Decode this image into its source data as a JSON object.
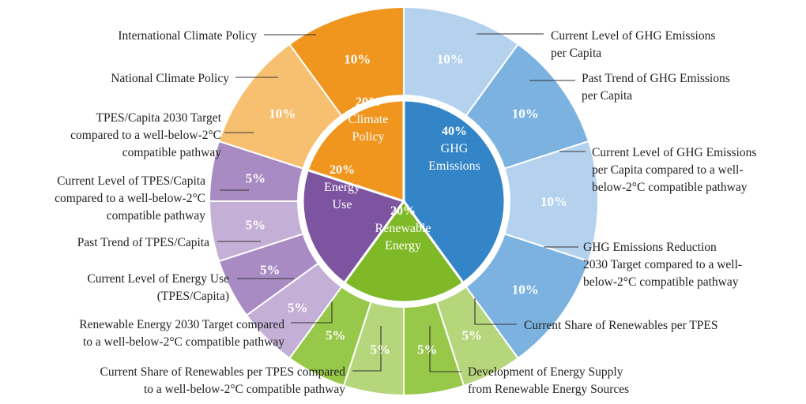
{
  "chart_data": {
    "type": "pie",
    "style": "two-level sunburst donut",
    "colors": {
      "ghg": "#3485c7",
      "ghg_light": "#b4d2ee",
      "ghg_mid": "#7cb2e0",
      "climate": "#f0951e",
      "climate_light": "#f7c070",
      "energy": "#7c549f",
      "energy_light": "#c4b0d6",
      "energy_mid": "#a98bc4",
      "renew": "#7fb927",
      "renew_light": "#b6d67c",
      "renew_mid": "#98c84a",
      "separator": "#ffffff"
    },
    "inner": [
      {
        "id": "ghg",
        "label_lines": [
          "40%",
          "GHG",
          "Emissions"
        ],
        "value": 40
      },
      {
        "id": "renew",
        "label_lines": [
          "20%",
          "Renewable",
          "Energy"
        ],
        "value": 20
      },
      {
        "id": "energy",
        "label_lines": [
          "20%",
          "Energy",
          "Use"
        ],
        "value": 20
      },
      {
        "id": "climate",
        "label_lines": [
          "20%",
          "Climate",
          "Policy"
        ],
        "value": 20
      }
    ],
    "outer": [
      {
        "id": "ghg1",
        "group": "ghg",
        "value": 10,
        "pct": "10%",
        "label_lines": [
          "Current Level of GHG Emissions",
          "per Capita"
        ]
      },
      {
        "id": "ghg2",
        "group": "ghg",
        "value": 10,
        "pct": "10%",
        "label_lines": [
          "Past Trend of GHG Emissions",
          "per Capita"
        ]
      },
      {
        "id": "ghg3",
        "group": "ghg",
        "value": 10,
        "pct": "10%",
        "label_lines": [
          "Current Level of GHG Emissions",
          "per Capita compared to a well-",
          "below-2°C compatible pathway"
        ]
      },
      {
        "id": "ghg4",
        "group": "ghg",
        "value": 10,
        "pct": "10%",
        "label_lines": [
          "GHG Emissions Reduction",
          "2030 Target compared to a well-",
          "below-2°C compatible pathway"
        ]
      },
      {
        "id": "ren1",
        "group": "renew",
        "value": 5,
        "pct": "5%",
        "label_lines": [
          "Current Share of Renewables per TPES"
        ]
      },
      {
        "id": "ren2",
        "group": "renew",
        "value": 5,
        "pct": "5%",
        "label_lines": [
          "Development of Energy Supply",
          "from Renewable Energy Sources"
        ]
      },
      {
        "id": "ren3",
        "group": "renew",
        "value": 5,
        "pct": "5%",
        "label_lines": [
          "Current Share of Renewables per TPES compared",
          "to a well-below-2°C compatible pathway"
        ]
      },
      {
        "id": "ren4",
        "group": "renew",
        "value": 5,
        "pct": "5%",
        "label_lines": [
          "Renewable Energy 2030 Target compared",
          "to a well-below-2°C compatible pathway"
        ]
      },
      {
        "id": "eu1",
        "group": "energy",
        "value": 5,
        "pct": "5%",
        "label_lines": [
          "Current Level of Energy Use",
          "(TPES/Capita)"
        ]
      },
      {
        "id": "eu2",
        "group": "energy",
        "value": 5,
        "pct": "5%",
        "label_lines": [
          "Past Trend of TPES/Capita"
        ]
      },
      {
        "id": "eu3",
        "group": "energy",
        "value": 5,
        "pct": "5%",
        "label_lines": [
          "Current Level of TPES/Capita",
          "compared to a well-below-2°C",
          "compatible pathway"
        ]
      },
      {
        "id": "eu4",
        "group": "energy",
        "value": 5,
        "pct": "5%",
        "label_lines": [
          "TPES/Capita 2030 Target",
          "compared to a well-below-2°C",
          "compatible pathway"
        ]
      },
      {
        "id": "cp1",
        "group": "climate",
        "value": 10,
        "pct": "10%",
        "label_lines": [
          "National Climate Policy"
        ]
      },
      {
        "id": "cp2",
        "group": "climate",
        "value": 10,
        "pct": "10%",
        "label_lines": [
          "International Climate Policy"
        ]
      }
    ]
  }
}
